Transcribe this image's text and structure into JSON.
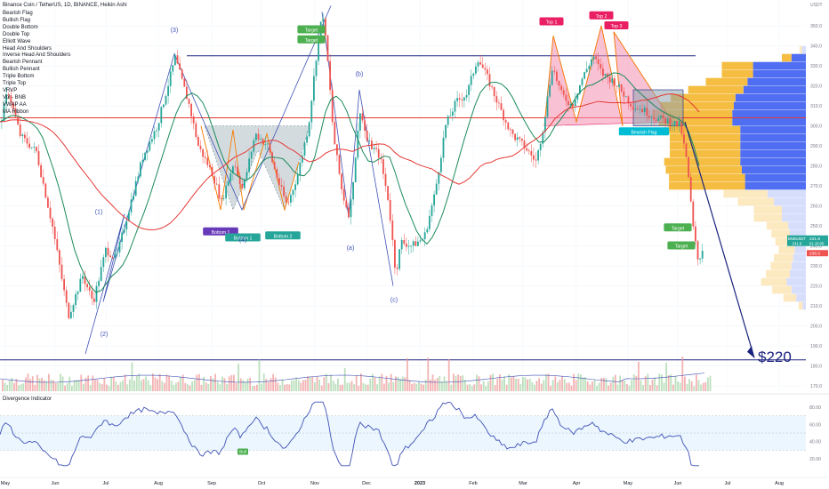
{
  "header": {
    "title": "Binance Coin / TetherUS, 1D, BINANCE, Heikin Ashi",
    "currency": "USDT"
  },
  "indicators": [
    "Bearish Flag",
    "Bullish Flag",
    "Double Bottom",
    "Double Top",
    "Elliott Wave",
    "Head And Shoulders",
    "Inverse Head And Shoulders",
    "Bearish Pennant",
    "Bullish Pennant",
    "Triple Bottom",
    "Triple Top",
    "VRVP",
    "Vol - BNB",
    "VWAP AA",
    "MA Ribbon"
  ],
  "oscillator": {
    "title": "Divergence Indicator",
    "ticks": [
      "80.00",
      "60.00",
      "40.00",
      "20.00"
    ],
    "bull_label": "Bull"
  },
  "chart_data": {
    "type": "candlestick",
    "symbol": "BNBUSDT",
    "timeframe": "1D",
    "chart_style": "Heikin Ashi",
    "colors": {
      "up": "#26a69a",
      "down": "#ef5350",
      "ma_short": "#1b8a5a",
      "ma_long": "#e53935",
      "projection": "#1a237e",
      "rsi": "#3f51b5",
      "vrvp_up": "#4f6ef2",
      "vrvp_down": "#f5bd41"
    },
    "y_axis": {
      "range": [
        168,
        360
      ],
      "ticks": [
        350,
        340,
        330,
        320,
        310,
        300,
        290,
        280,
        270,
        260,
        250,
        240,
        230,
        220,
        210,
        200,
        190,
        180,
        170
      ]
    },
    "x_axis": {
      "labels": [
        "May",
        "Jun",
        "Jul",
        "Aug",
        "Sep",
        "Oct",
        "Nov",
        "Dec",
        "2023",
        "Feb",
        "Mar",
        "Apr",
        "May",
        "Jun",
        "Jul",
        "Aug"
      ]
    },
    "price_path": [
      [
        0,
        302
      ],
      [
        8,
        318
      ],
      [
        22,
        295
      ],
      [
        40,
        287
      ],
      [
        58,
        250
      ],
      [
        76,
        205
      ],
      [
        92,
        225
      ],
      [
        104,
        212
      ],
      [
        118,
        238
      ],
      [
        130,
        234
      ],
      [
        142,
        255
      ],
      [
        160,
        285
      ],
      [
        176,
        300
      ],
      [
        196,
        334
      ],
      [
        212,
        310
      ],
      [
        222,
        290
      ],
      [
        238,
        276
      ],
      [
        248,
        262
      ],
      [
        262,
        282
      ],
      [
        272,
        268
      ],
      [
        286,
        296
      ],
      [
        300,
        290
      ],
      [
        312,
        272
      ],
      [
        322,
        260
      ],
      [
        334,
        276
      ],
      [
        346,
        300
      ],
      [
        356,
        340
      ],
      [
        362,
        357
      ],
      [
        368,
        330
      ],
      [
        374,
        295
      ],
      [
        384,
        266
      ],
      [
        392,
        255
      ],
      [
        404,
        308
      ],
      [
        412,
        292
      ],
      [
        426,
        285
      ],
      [
        436,
        262
      ],
      [
        444,
        226
      ],
      [
        450,
        242
      ],
      [
        462,
        240
      ],
      [
        476,
        244
      ],
      [
        488,
        266
      ],
      [
        500,
        300
      ],
      [
        512,
        312
      ],
      [
        524,
        316
      ],
      [
        536,
        334
      ],
      [
        546,
        325
      ],
      [
        560,
        310
      ],
      [
        574,
        296
      ],
      [
        588,
        290
      ],
      [
        602,
        282
      ],
      [
        610,
        300
      ],
      [
        620,
        330
      ],
      [
        630,
        316
      ],
      [
        642,
        310
      ],
      [
        654,
        324
      ],
      [
        666,
        335
      ],
      [
        676,
        326
      ],
      [
        690,
        322
      ],
      [
        700,
        316
      ],
      [
        710,
        310
      ],
      [
        722,
        308
      ],
      [
        736,
        304
      ],
      [
        752,
        302
      ],
      [
        764,
        300
      ],
      [
        772,
        280
      ],
      [
        778,
        250
      ],
      [
        784,
        232
      ],
      [
        790,
        240
      ]
    ],
    "volume_profile": [
      {
        "price": 338,
        "up": 0.05,
        "down": 0.03
      },
      {
        "price": 334,
        "up": 0.18,
        "down": 0.12
      },
      {
        "price": 330,
        "up": 0.66,
        "down": 0.39
      },
      {
        "price": 326,
        "up": 0.66,
        "down": 0.39
      },
      {
        "price": 322,
        "up": 0.73,
        "down": 0.52
      },
      {
        "price": 318,
        "up": 0.78,
        "down": 0.69
      },
      {
        "price": 314,
        "up": 0.88,
        "down": 0.81
      },
      {
        "price": 310,
        "up": 0.9,
        "down": 0.92
      },
      {
        "price": 306,
        "up": 0.92,
        "down": 1.0
      },
      {
        "price": 302,
        "up": 0.92,
        "down": 0.92
      },
      {
        "price": 298,
        "up": 0.82,
        "down": 0.9
      },
      {
        "price": 294,
        "up": 0.82,
        "down": 0.88
      },
      {
        "price": 290,
        "up": 0.82,
        "down": 0.88
      },
      {
        "price": 286,
        "up": 0.82,
        "down": 0.88
      },
      {
        "price": 282,
        "up": 0.82,
        "down": 0.95
      },
      {
        "price": 278,
        "up": 0.8,
        "down": 0.95
      },
      {
        "price": 274,
        "up": 0.76,
        "down": 0.95
      },
      {
        "price": 270,
        "up": 0.76,
        "down": 0.95
      },
      {
        "price": 266,
        "up": 0.48,
        "down": 0.55
      },
      {
        "price": 262,
        "up": 0.4,
        "down": 0.45
      },
      {
        "price": 258,
        "up": 0.3,
        "down": 0.35
      },
      {
        "price": 254,
        "up": 0.3,
        "down": 0.35
      },
      {
        "price": 250,
        "up": 0.22,
        "down": 0.27
      },
      {
        "price": 246,
        "up": 0.2,
        "down": 0.23
      },
      {
        "price": 242,
        "up": 0.16,
        "down": 0.22
      },
      {
        "price": 238,
        "up": 0.14,
        "down": 0.2
      },
      {
        "price": 234,
        "up": 0.16,
        "down": 0.24
      },
      {
        "price": 230,
        "up": 0.18,
        "down": 0.26
      },
      {
        "price": 226,
        "up": 0.2,
        "down": 0.3
      },
      {
        "price": 222,
        "up": 0.24,
        "down": 0.32
      },
      {
        "price": 218,
        "up": 0.18,
        "down": 0.24
      },
      {
        "price": 214,
        "up": 0.12,
        "down": 0.16
      },
      {
        "price": 210,
        "up": 0.04,
        "down": 0.05
      }
    ],
    "horizontal_lines": [
      {
        "price": 335,
        "color": "#1a237e"
      },
      {
        "price": 304,
        "color": "#e53935"
      },
      {
        "price": 183,
        "color": "#1a237e"
      }
    ],
    "target_arrow_label": "$220",
    "last_price_tags": [
      {
        "label": "BNBUSDT",
        "value": "241.6",
        "time": "01:15:00",
        "price2": "236.5",
        "color": "#26a69a",
        "color2": "#ef5350"
      }
    ],
    "pattern_labels": [
      {
        "text": "Top 1",
        "price": 352,
        "color": "#e91e63"
      },
      {
        "text": "Top 2",
        "price": 355,
        "color": "#e91e63"
      },
      {
        "text": "Top 3",
        "price": 350,
        "color": "#e91e63"
      },
      {
        "text": "Bottom 1",
        "price": 247,
        "color": "#673ab7"
      },
      {
        "text": "Bottom 1",
        "price": 244,
        "color": "#26a69a"
      },
      {
        "text": "Bottom 2",
        "price": 245,
        "color": "#26a69a"
      },
      {
        "text": "Target",
        "price": 348,
        "color": "#4caf50"
      },
      {
        "text": "Target",
        "price": 343,
        "color": "#4caf50"
      },
      {
        "text": "Bearish Flag",
        "price": 297,
        "color": "#00bcd4"
      },
      {
        "text": "Target",
        "price": 249,
        "color": "#4caf50"
      },
      {
        "text": "Target",
        "price": 240,
        "color": "#4caf50"
      }
    ],
    "elliott_labels": [
      {
        "text": "(1)",
        "price": 256
      },
      {
        "text": "(2)",
        "price": 195
      },
      {
        "text": "(3)",
        "price": 347
      },
      {
        "text": "(4)",
        "price": 242
      },
      {
        "text": "(b)",
        "price": 325
      },
      {
        "text": "(a)",
        "price": 238
      },
      {
        "text": "(c)",
        "price": 212
      }
    ]
  }
}
